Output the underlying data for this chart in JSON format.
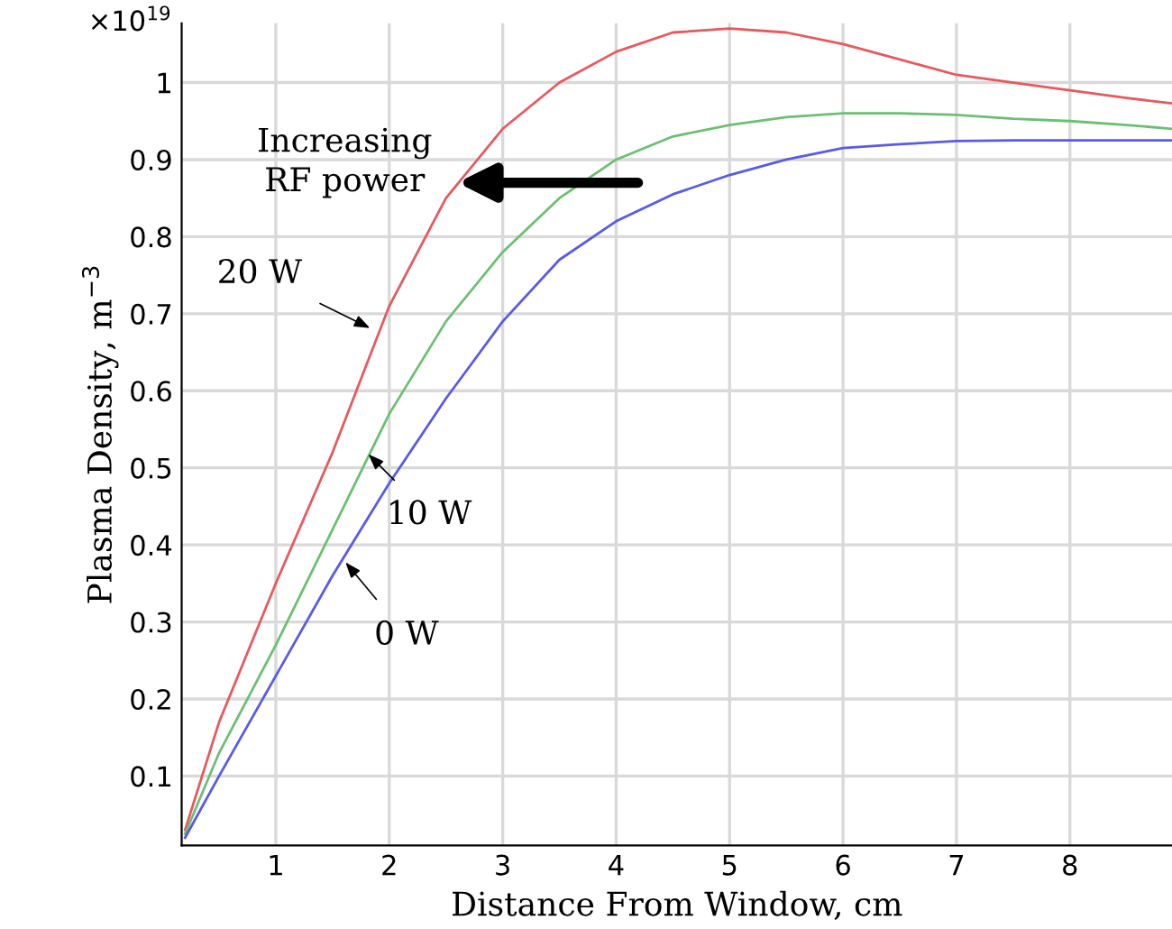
{
  "chart_data": {
    "type": "line",
    "xlabel": "Distance From Window, cm",
    "ylabel": "Plasma Density, m$^{−3}$",
    "x": [
      0.2,
      0.5,
      1,
      1.5,
      2,
      2.5,
      3,
      3.5,
      4,
      4.5,
      5,
      5.5,
      6,
      6.5,
      7,
      7.5,
      8,
      8.5,
      8.9
    ],
    "series": [
      {
        "color": "#e8595e",
        "values": [
          0.03,
          0.17,
          0.35,
          0.52,
          0.71,
          0.85,
          0.94,
          1.0,
          1.04,
          1.065,
          1.07,
          1.065,
          1.05,
          1.03,
          1.01,
          1.0,
          0.99,
          0.98,
          0.973
        ]
      },
      {
        "color": "#6cbf73",
        "values": [
          0.025,
          0.13,
          0.27,
          0.42,
          0.57,
          0.69,
          0.78,
          0.85,
          0.9,
          0.93,
          0.945,
          0.955,
          0.96,
          0.96,
          0.958,
          0.953,
          0.95,
          0.945,
          0.94
        ]
      },
      {
        "color": "#5a5ae8",
        "values": [
          0.02,
          0.1,
          0.23,
          0.36,
          0.48,
          0.59,
          0.69,
          0.77,
          0.82,
          0.855,
          0.88,
          0.9,
          0.915,
          0.92,
          0.924,
          0.925,
          0.925,
          0.925,
          0.925
        ]
      }
    ],
    "xlim": [
      0.17,
      8.9
    ],
    "ylim": [
      0.01,
      1.077
    ],
    "xticks": [
      1,
      2,
      3,
      4,
      5,
      6,
      7,
      8
    ],
    "yticks": [
      0.1,
      0.2,
      0.3,
      0.4,
      0.5,
      0.6,
      0.7,
      0.8,
      0.9,
      1
    ],
    "grid": true,
    "marker": "none",
    "line_style": "solid",
    "annotations": [
      "×10$^{19}$",
      {
        "text": "Increasing\nRF power",
        "x": 2.6,
        "y": 0.87
      },
      {
        "text": "20 W",
        "x": 1.85,
        "y": 0.68
      },
      {
        "text": "10 W",
        "x": 1.8,
        "y": 0.52
      },
      {
        "text": "0 W",
        "x": 1.6,
        "y": 0.38
      }
    ]
  }
}
